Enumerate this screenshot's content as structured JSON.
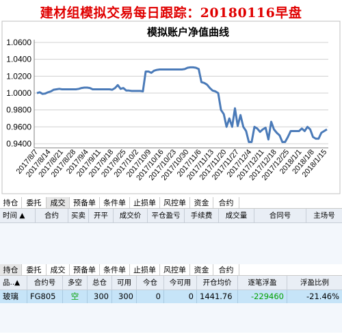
{
  "title": "建材组模拟交易每日跟踪：20180116早盘",
  "chart_data": {
    "type": "line",
    "title": "模拟账户净值曲线",
    "yticks": [
      "1.0600",
      "1.0400",
      "1.0200",
      "1.0000",
      "0.9800",
      "0.9600",
      "0.9400"
    ],
    "ylim": [
      0.94,
      1.06
    ],
    "x_tick_labels": [
      "2017/8/7",
      "2017/8/14",
      "2017/8/21",
      "2017/8/28",
      "2017/9/4",
      "2017/9/11",
      "2017/9/18",
      "2017/9/25",
      "2017/10/2",
      "2017/10/9",
      "2017/10/16",
      "2017/10/23",
      "2017/10/30",
      "2017/11/6",
      "2017/11/13",
      "2017/11/20",
      "2017/11/27",
      "2017/12/4",
      "2017/12/11",
      "2017/12/18",
      "2017/12/25",
      "2018/1/1",
      "2018/1/8",
      "2018/1/15"
    ],
    "grid": "horizontal",
    "line_color": "#4a7ab8",
    "series": [
      {
        "values": [
          1.0,
          1.001,
          0.999,
          0.9995,
          1.001,
          1.002,
          1.004,
          1.0045,
          1.005,
          1.0045,
          1.0045,
          1.0045,
          1.0045,
          1.0045,
          1.0045,
          1.005,
          1.006,
          1.0065,
          1.0065,
          1.006,
          1.0045,
          1.0045,
          1.0045,
          1.0045,
          1.0045,
          1.0045,
          1.0045,
          1.004,
          1.006,
          1.0095,
          1.005,
          1.006,
          1.003,
          1.003,
          1.0025,
          1.0025,
          1.0025,
          1.0025,
          1.002,
          1.0255,
          1.0255,
          1.024,
          1.0265,
          1.0275,
          1.028,
          1.028,
          1.028,
          1.028,
          1.028,
          1.028,
          1.028,
          1.028,
          1.028,
          1.0285,
          1.03,
          1.0305,
          1.0305,
          1.03,
          1.0285,
          1.013,
          1.012,
          1.01,
          1.006,
          1.003,
          1.002,
          1.0,
          0.98,
          0.975,
          0.96,
          0.97,
          0.96,
          0.982,
          0.961,
          0.974,
          0.96,
          0.955,
          0.942,
          0.942,
          0.96,
          0.958,
          0.954,
          0.957,
          0.959,
          0.945,
          0.966,
          0.957,
          0.953,
          0.95,
          0.942,
          0.942,
          0.948,
          0.955,
          0.955,
          0.955,
          0.955,
          0.958,
          0.955,
          0.96,
          0.957,
          0.948,
          0.946,
          0.946,
          0.953,
          0.955,
          0.957
        ]
      }
    ]
  },
  "orders_panel": {
    "tabs": [
      "持仓",
      "委托",
      "成交",
      "预备单",
      "条件单",
      "止损单",
      "风控单",
      "资金",
      "合约"
    ],
    "active_tab": 2,
    "columns": [
      "时间 ▲",
      "合约",
      "买卖",
      "开平",
      "成交价",
      "平仓盈亏",
      "手续费",
      "成交量",
      "合同号",
      "主场号"
    ]
  },
  "positions_panel": {
    "tabs": [
      "持仓",
      "委托",
      "成交",
      "预备单",
      "条件单",
      "止损单",
      "风控单",
      "资金",
      "合约"
    ],
    "active_tab": 0,
    "columns": [
      "品..▲",
      "合约号",
      "多空",
      "总仓",
      "可用",
      "今仓",
      "今可用",
      "开仓均价",
      "逐笔浮盈",
      "浮盈比例"
    ],
    "row": {
      "product": "玻璃",
      "contract": "FG805",
      "direction": "空",
      "total": "300",
      "available": "300",
      "today": "0",
      "today_available": "0",
      "avg_open_price": "1441.76",
      "float_pnl": "-229460",
      "float_pct": "-21.46%"
    },
    "colors": {
      "direction": "#00a000",
      "pnl": "#00a000"
    }
  }
}
